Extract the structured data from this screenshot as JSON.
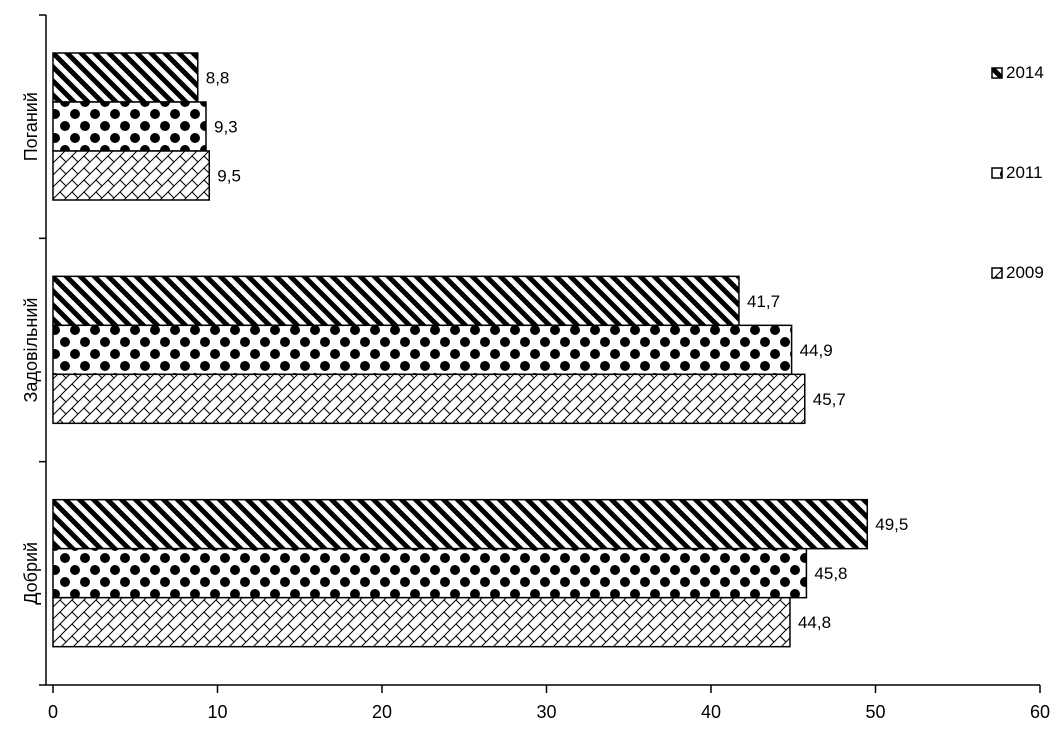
{
  "chart_data": {
    "type": "bar",
    "orientation": "horizontal",
    "categories": [
      "Поганий",
      "Задовільний",
      "Добрий"
    ],
    "series": [
      {
        "name": "2014",
        "values": [
          8.8,
          41.7,
          49.5
        ],
        "labels": [
          "8,8",
          "41,7",
          "49,5"
        ],
        "pattern": "diagonal-stripes"
      },
      {
        "name": "2011",
        "values": [
          9.3,
          44.9,
          45.8
        ],
        "labels": [
          "9,3",
          "44,9",
          "45,8"
        ],
        "pattern": "dots"
      },
      {
        "name": "2009",
        "values": [
          9.5,
          45.7,
          44.8
        ],
        "labels": [
          "9,5",
          "45,7",
          "44,8"
        ],
        "pattern": "crosshatch"
      }
    ],
    "xlim": [
      0,
      60
    ],
    "x_ticks": [
      "0",
      "10",
      "20",
      "30",
      "40",
      "50",
      "60"
    ],
    "title": "",
    "xlabel": "",
    "ylabel": "",
    "legend": {
      "placement": "right",
      "entries": [
        "2014",
        "2011",
        "2009"
      ]
    },
    "grid": false,
    "colors": {
      "ink": "#000000",
      "background": "#ffffff"
    }
  }
}
